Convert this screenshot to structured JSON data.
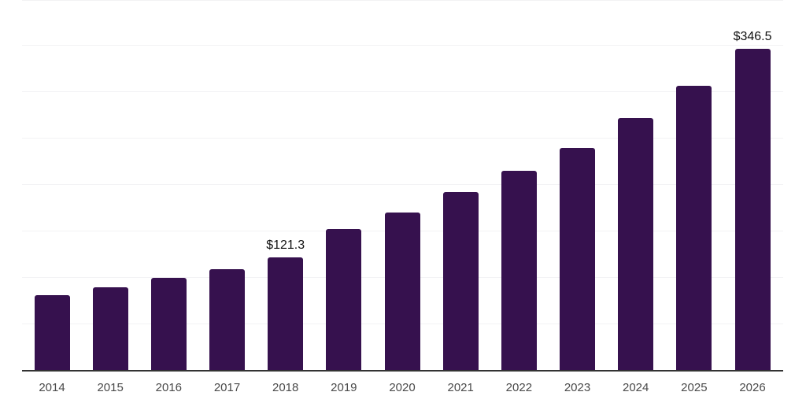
{
  "chart_data": {
    "type": "bar",
    "title": "",
    "xlabel": "",
    "ylabel": "",
    "categories": [
      "2014",
      "2015",
      "2016",
      "2017",
      "2018",
      "2019",
      "2020",
      "2021",
      "2022",
      "2023",
      "2024",
      "2025",
      "2026"
    ],
    "values": [
      81,
      89,
      99,
      109,
      121.3,
      152,
      170,
      192,
      215,
      240,
      272,
      307,
      346.5
    ],
    "annotations": [
      {
        "category": "2018",
        "text": "$121.3"
      },
      {
        "category": "2026",
        "text": "$346.5"
      }
    ],
    "ylim": [
      0,
      400
    ],
    "grid_step": 50,
    "grid": "horizontal-only",
    "y_tick_labels_visible": false,
    "legend": "none",
    "colors": {
      "bar": "#36114E",
      "gridline": "#F2F2F4",
      "axis_line": "#333333",
      "tick_label": "#4A4A4A",
      "data_label": "#111111",
      "background": "#FFFFFF"
    }
  }
}
